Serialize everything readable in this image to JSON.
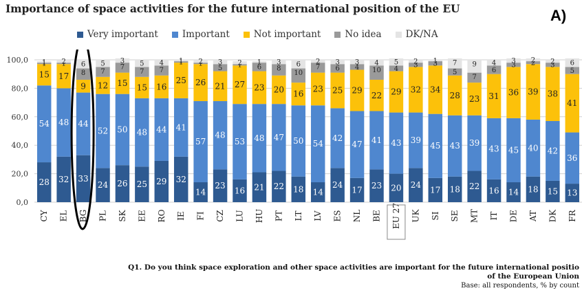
{
  "title": "Importance of space activities for the future international position of the EU",
  "panel_label": "A)",
  "caption": {
    "question_line1": "Q1. Do you think space exploration and other space activities are important for the future international positio",
    "question_line2": "of the European Union",
    "base": "Base: all respondents, % by count"
  },
  "colors": {
    "very_important": "#2e5a91",
    "important": "#4f87cf",
    "not_important": "#fcc10a",
    "no_idea": "#9a9a9a",
    "dk_na": "#e4e4e4",
    "grid": "#cfcfcf",
    "highlight_ellipse": "#000000"
  },
  "highlight": {
    "category": "BG",
    "shape": "ellipse",
    "color": "#000000"
  },
  "boxed_category": "EU 27",
  "chart_data": {
    "type": "bar",
    "stacked": true,
    "title": "Importance of space activities for the future international position of the EU",
    "xlabel": "",
    "ylabel": "",
    "ylim": [
      0,
      100
    ],
    "yticks": [
      "0,0",
      "20,0",
      "40,0",
      "60,0",
      "80,0",
      "100,0"
    ],
    "grid": true,
    "legend_position": "top",
    "categories": [
      "CY",
      "EL",
      "BG",
      "PL",
      "SK",
      "EE",
      "RO",
      "IE",
      "FI",
      "CZ",
      "LU",
      "HU",
      "PT",
      "LT",
      "LV",
      "ES",
      "NL",
      "BE",
      "EU 27",
      "UK",
      "SI",
      "SE",
      "MT",
      "IT",
      "DE",
      "AT",
      "DK",
      "FR"
    ],
    "series": [
      {
        "name": "Very important",
        "color": "#2e5a91",
        "values": [
          28,
          32,
          33,
          24,
          26,
          25,
          29,
          32,
          14,
          23,
          16,
          21,
          22,
          18,
          14,
          24,
          17,
          23,
          20,
          24,
          17,
          18,
          22,
          16,
          14,
          18,
          15,
          13
        ]
      },
      {
        "name": "Important",
        "color": "#4f87cf",
        "values": [
          54,
          48,
          44,
          52,
          50,
          48,
          44,
          41,
          57,
          48,
          53,
          48,
          47,
          50,
          54,
          42,
          47,
          41,
          43,
          39,
          45,
          43,
          39,
          43,
          45,
          40,
          42,
          36
        ]
      },
      {
        "name": "Not important",
        "color": "#fcc10a",
        "values": [
          15,
          17,
          9,
          12,
          15,
          15,
          16,
          25,
          26,
          21,
          27,
          23,
          20,
          16,
          23,
          25,
          29,
          22,
          29,
          32,
          34,
          28,
          23,
          31,
          36,
          39,
          38,
          41
        ]
      },
      {
        "name": "No idea",
        "color": "#9a9a9a",
        "values": [
          1,
          1,
          8,
          7,
          7,
          7,
          7,
          1,
          1,
          5,
          1,
          6,
          8,
          10,
          7,
          6,
          4,
          10,
          4,
          3,
          3,
          5,
          7,
          6,
          3,
          2,
          3,
          5
        ]
      },
      {
        "name": "DK/NA",
        "color": "#e4e4e4",
        "values": [
          1,
          2,
          6,
          5,
          3,
          5,
          4,
          1,
          2,
          3,
          2,
          1,
          3,
          6,
          2,
          3,
          3,
          4,
          5,
          2,
          1,
          7,
          9,
          4,
          3,
          2,
          2,
          6
        ]
      }
    ]
  }
}
